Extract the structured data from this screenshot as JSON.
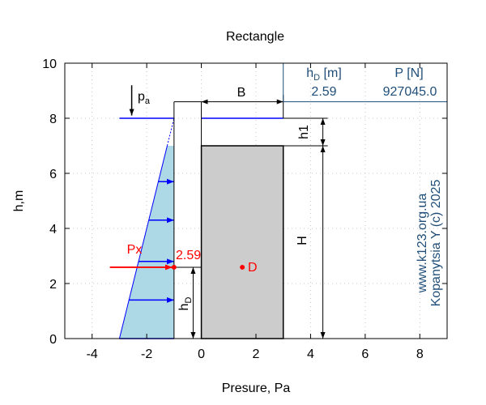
{
  "title": "Rectangle",
  "axes": {
    "xlabel": "Presure, Pa",
    "ylabel": "h,m",
    "xlim": [
      -5,
      9
    ],
    "ylim": [
      0,
      10
    ],
    "xticks": [
      -4,
      -2,
      0,
      2,
      4,
      6,
      8
    ],
    "yticks": [
      0,
      2,
      4,
      6,
      8,
      10
    ],
    "x_tick_labels": [
      "-4",
      "-2",
      "0",
      "2",
      "4",
      "6",
      "8"
    ],
    "y_tick_labels": [
      "0",
      "2",
      "4",
      "6",
      "8",
      "10"
    ],
    "grid": true
  },
  "diagram": {
    "water_level": 8,
    "gate_top": 7,
    "gate_bottom": 0,
    "gate_left": 0,
    "gate_right": 3,
    "wall_x": -1,
    "pressure_base_x": -3,
    "pressure_arrow_levels": [
      1.4,
      2.8,
      4.3,
      5.7
    ],
    "centre_of_pressure_depth": 2.59,
    "point_D": [
      1.5,
      2.59
    ]
  },
  "labels": {
    "pa_main": "p",
    "pa_sub": "a",
    "B": "B",
    "h1": "h1",
    "H": "H",
    "hD_main": "h",
    "hD_sub": "D",
    "Px": "Px",
    "value_2_59": "2.59",
    "D": "D",
    "watermark_line1": "www.k123.org.ua",
    "watermark_line2": "Kopanytsia Y (c)  2025"
  },
  "result_table": {
    "header_hd_main": "h",
    "header_hd_sub": "D",
    "header_hd_unit": " [m]",
    "header_p": "P [N]",
    "value_hd": "2.59",
    "value_p": "927045.0"
  },
  "colors": {
    "blue": "#0000ff",
    "red": "#ff0000",
    "fill_blue": "#add8e6",
    "gate_gray": "#cccccc",
    "table_blue": "#1f4e79",
    "watermark": "#1f4e79"
  }
}
